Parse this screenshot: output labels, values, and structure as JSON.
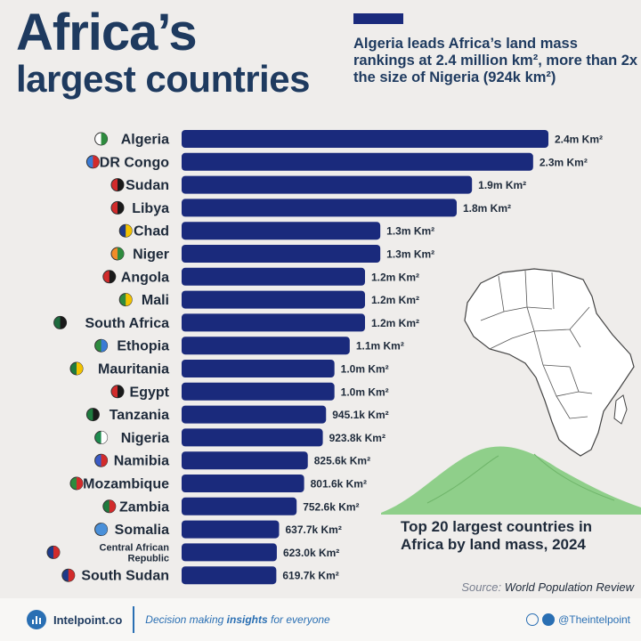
{
  "header": {
    "title_line1": "Africa’s",
    "title_line2": "largest countries",
    "subtitle": "Algeria leads Africa’s land mass rankings at 2.4 million km², more than 2x the size of Nigeria (924k km²)"
  },
  "colors": {
    "bar": "#1a2a7c",
    "title": "#1e3a5f",
    "background": "#efedeb",
    "accent": "#2a6fb3",
    "map_land": "#ffffff",
    "map_border": "#444444",
    "mountain": "#8fcf8a"
  },
  "chart_data": {
    "type": "bar",
    "orientation": "horizontal",
    "title": "Africa’s largest countries",
    "unit": "Km²",
    "categories": [
      "Algeria",
      "DR Congo",
      "Sudan",
      "Libya",
      "Chad",
      "Niger",
      "Angola",
      "Mali",
      "South Africa",
      "Ethopia",
      "Mauritania",
      "Egypt",
      "Tanzania",
      "Nigeria",
      "Namibia",
      "Mozambique",
      "Zambia",
      "Somalia",
      "Central African Republic",
      "South Sudan"
    ],
    "values": [
      2.4,
      2.3,
      1.9,
      1.8,
      1.3,
      1.3,
      1.2,
      1.2,
      1.2,
      1.1,
      1.0,
      1.0,
      0.9451,
      0.9238,
      0.8256,
      0.8016,
      0.7526,
      0.6377,
      0.623,
      0.6197
    ],
    "value_labels": [
      "2.4m Km²",
      "2.3m Km²",
      "1.9m Km²",
      "1.8m Km²",
      "1.3m Km²",
      "1.3m Km²",
      "1.2m Km²",
      "1.2m Km²",
      "1.2m Km²",
      "1.1m Km²",
      "1.0m Km²",
      "1.0m Km²",
      "945.1k Km²",
      "923.8k Km²",
      "825.6k Km²",
      "801.6k Km²",
      "752.6k Km²",
      "637.7k Km²",
      "623.0k Km²",
      "619.7k Km²"
    ],
    "flag_colors": [
      [
        "#ffffff",
        "#2e8b3e"
      ],
      [
        "#3a7bd5",
        "#d22b2b"
      ],
      [
        "#d22b2b",
        "#1a1a1a"
      ],
      [
        "#d22b2b",
        "#1a1a1a"
      ],
      [
        "#1e3a8a",
        "#f2c200"
      ],
      [
        "#f28c28",
        "#2e8b3e"
      ],
      [
        "#d22b2b",
        "#1a1a1a"
      ],
      [
        "#2e8b3e",
        "#f2c200"
      ],
      [
        "#1e6b3e",
        "#1a1a1a"
      ],
      [
        "#2e8b3e",
        "#3a7bd5"
      ],
      [
        "#1e7b3e",
        "#f2c200"
      ],
      [
        "#d22b2b",
        "#1a1a1a"
      ],
      [
        "#1e7b3e",
        "#1a1a1a"
      ],
      [
        "#1e8b4e",
        "#ffffff"
      ],
      [
        "#3a5bc5",
        "#d22b2b"
      ],
      [
        "#2e8b3e",
        "#d22b2b"
      ],
      [
        "#1e7b3e",
        "#d22b2b"
      ],
      [
        "#4a90d9",
        "#4a90d9"
      ],
      [
        "#1e3a8a",
        "#d22b2b"
      ],
      [
        "#1e3a8a",
        "#d22b2b"
      ]
    ],
    "xlim": [
      0,
      2.4
    ]
  },
  "map": {
    "caption": "Top 20 largest countries in Africa by land mass, 2024"
  },
  "source": {
    "label": "Source:",
    "name": "World Population Review"
  },
  "footer": {
    "brand": "Intelpoint.co",
    "tagline_before": "Decision making ",
    "tagline_emphasis": "insights",
    "tagline_after": " for everyone",
    "social_handle": "@Theintelpoint",
    "logo_icon": "bar-chart-icon",
    "social_icons": [
      "instagram-icon",
      "facebook-icon"
    ]
  }
}
